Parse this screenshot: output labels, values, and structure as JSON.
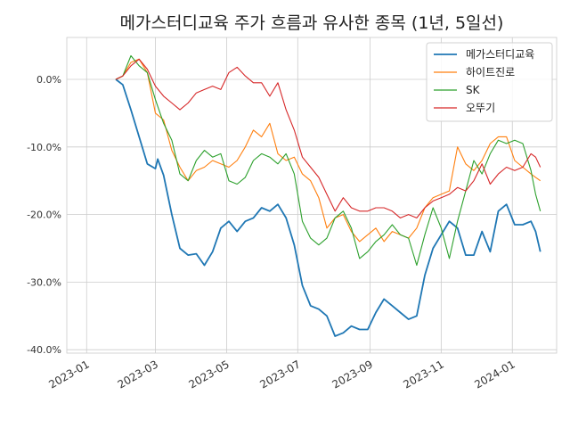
{
  "chart_data": {
    "type": "line",
    "title": "메가스터디교육 주가 흐름과 유사한 종목 (1년, 5일선)",
    "xlabel": "",
    "ylabel": "",
    "xlim": [
      "2022-12-15",
      "2024-02-08"
    ],
    "ylim": [
      -40.5,
      6.2
    ],
    "x_ticks": [
      "2023-01",
      "2023-03",
      "2023-05",
      "2023-07",
      "2023-09",
      "2023-11",
      "2024-01"
    ],
    "y_ticks": [
      "0.0%",
      "-10.0%",
      "-20.0%",
      "-30.0%",
      "-40.0%"
    ],
    "y_tick_values": [
      0,
      -10,
      -20,
      -30,
      -40
    ],
    "grid": true,
    "legend_position": "top-right",
    "series": [
      {
        "name": "메가스터디교육",
        "color": "#1f77b4",
        "points": [
          [
            "2023-01-26",
            0.0
          ],
          [
            "2023-02-01",
            -0.8
          ],
          [
            "2023-02-08",
            -4.5
          ],
          [
            "2023-02-15",
            -8.5
          ],
          [
            "2023-02-22",
            -12.5
          ],
          [
            "2023-03-01",
            -13.2
          ],
          [
            "2023-03-03",
            -11.8
          ],
          [
            "2023-03-08",
            -14.2
          ],
          [
            "2023-03-15",
            -20.0
          ],
          [
            "2023-03-22",
            -25.0
          ],
          [
            "2023-03-29",
            -26.0
          ],
          [
            "2023-04-05",
            -25.8
          ],
          [
            "2023-04-12",
            -27.5
          ],
          [
            "2023-04-19",
            -25.5
          ],
          [
            "2023-04-26",
            -22.0
          ],
          [
            "2023-05-03",
            -21.0
          ],
          [
            "2023-05-10",
            -22.5
          ],
          [
            "2023-05-17",
            -21.0
          ],
          [
            "2023-05-24",
            -20.5
          ],
          [
            "2023-05-31",
            -19.0
          ],
          [
            "2023-06-07",
            -19.5
          ],
          [
            "2023-06-14",
            -18.5
          ],
          [
            "2023-06-21",
            -20.5
          ],
          [
            "2023-06-28",
            -24.5
          ],
          [
            "2023-07-05",
            -30.5
          ],
          [
            "2023-07-12",
            -33.5
          ],
          [
            "2023-07-19",
            -34.0
          ],
          [
            "2023-07-26",
            -35.0
          ],
          [
            "2023-08-02",
            -38.0
          ],
          [
            "2023-08-09",
            -37.5
          ],
          [
            "2023-08-16",
            -36.5
          ],
          [
            "2023-08-23",
            -37.0
          ],
          [
            "2023-08-30",
            -37.0
          ],
          [
            "2023-09-06",
            -34.5
          ],
          [
            "2023-09-13",
            -32.5
          ],
          [
            "2023-09-20",
            -33.5
          ],
          [
            "2023-09-27",
            -34.5
          ],
          [
            "2023-10-04",
            -35.5
          ],
          [
            "2023-10-11",
            -35.0
          ],
          [
            "2023-10-18",
            -29.0
          ],
          [
            "2023-10-25",
            -25.0
          ],
          [
            "2023-11-01",
            -23.0
          ],
          [
            "2023-11-08",
            -21.0
          ],
          [
            "2023-11-15",
            -22.0
          ],
          [
            "2023-11-22",
            -26.0
          ],
          [
            "2023-11-29",
            -26.0
          ],
          [
            "2023-12-06",
            -22.5
          ],
          [
            "2023-12-13",
            -25.5
          ],
          [
            "2023-12-20",
            -19.5
          ],
          [
            "2023-12-27",
            -18.5
          ],
          [
            "2024-01-03",
            -21.5
          ],
          [
            "2024-01-10",
            -21.5
          ],
          [
            "2024-01-17",
            -21.0
          ],
          [
            "2024-01-21",
            -22.5
          ],
          [
            "2024-01-25",
            -25.5
          ]
        ]
      },
      {
        "name": "하이트진로",
        "color": "#ff7f0e",
        "points": [
          [
            "2023-01-26",
            0.0
          ],
          [
            "2023-02-01",
            0.5
          ],
          [
            "2023-02-08",
            2.5
          ],
          [
            "2023-02-15",
            3.0
          ],
          [
            "2023-02-22",
            1.0
          ],
          [
            "2023-03-01",
            -5.0
          ],
          [
            "2023-03-08",
            -6.0
          ],
          [
            "2023-03-15",
            -10.5
          ],
          [
            "2023-03-22",
            -13.0
          ],
          [
            "2023-03-29",
            -15.0
          ],
          [
            "2023-04-05",
            -13.5
          ],
          [
            "2023-04-12",
            -13.0
          ],
          [
            "2023-04-19",
            -12.0
          ],
          [
            "2023-04-26",
            -12.5
          ],
          [
            "2023-05-03",
            -13.0
          ],
          [
            "2023-05-10",
            -12.0
          ],
          [
            "2023-05-17",
            -10.0
          ],
          [
            "2023-05-24",
            -7.5
          ],
          [
            "2023-05-31",
            -8.5
          ],
          [
            "2023-06-07",
            -6.5
          ],
          [
            "2023-06-14",
            -11.0
          ],
          [
            "2023-06-21",
            -12.0
          ],
          [
            "2023-06-28",
            -11.5
          ],
          [
            "2023-07-05",
            -14.0
          ],
          [
            "2023-07-12",
            -15.0
          ],
          [
            "2023-07-19",
            -17.5
          ],
          [
            "2023-07-26",
            -22.0
          ],
          [
            "2023-08-02",
            -20.5
          ],
          [
            "2023-08-09",
            -20.0
          ],
          [
            "2023-08-16",
            -22.5
          ],
          [
            "2023-08-23",
            -24.0
          ],
          [
            "2023-08-30",
            -23.0
          ],
          [
            "2023-09-06",
            -22.0
          ],
          [
            "2023-09-13",
            -24.0
          ],
          [
            "2023-09-20",
            -22.5
          ],
          [
            "2023-09-27",
            -23.0
          ],
          [
            "2023-10-04",
            -23.5
          ],
          [
            "2023-10-11",
            -22.0
          ],
          [
            "2023-10-18",
            -19.0
          ],
          [
            "2023-10-25",
            -17.5
          ],
          [
            "2023-11-01",
            -17.0
          ],
          [
            "2023-11-08",
            -16.5
          ],
          [
            "2023-11-15",
            -10.0
          ],
          [
            "2023-11-22",
            -12.5
          ],
          [
            "2023-11-29",
            -13.5
          ],
          [
            "2023-12-06",
            -12.0
          ],
          [
            "2023-12-13",
            -9.5
          ],
          [
            "2023-12-20",
            -8.5
          ],
          [
            "2023-12-27",
            -8.5
          ],
          [
            "2024-01-03",
            -12.0
          ],
          [
            "2024-01-10",
            -13.0
          ],
          [
            "2024-01-17",
            -14.0
          ],
          [
            "2024-01-21",
            -14.5
          ],
          [
            "2024-01-25",
            -15.0
          ]
        ]
      },
      {
        "name": "SK",
        "color": "#2ca02c",
        "points": [
          [
            "2023-01-26",
            0.0
          ],
          [
            "2023-02-01",
            0.5
          ],
          [
            "2023-02-08",
            3.5
          ],
          [
            "2023-02-15",
            2.0
          ],
          [
            "2023-02-22",
            1.0
          ],
          [
            "2023-03-01",
            -3.0
          ],
          [
            "2023-03-08",
            -6.5
          ],
          [
            "2023-03-15",
            -9.0
          ],
          [
            "2023-03-22",
            -14.0
          ],
          [
            "2023-03-29",
            -15.0
          ],
          [
            "2023-04-05",
            -12.0
          ],
          [
            "2023-04-12",
            -10.5
          ],
          [
            "2023-04-19",
            -11.5
          ],
          [
            "2023-04-26",
            -11.0
          ],
          [
            "2023-05-03",
            -15.0
          ],
          [
            "2023-05-10",
            -15.5
          ],
          [
            "2023-05-17",
            -14.5
          ],
          [
            "2023-05-24",
            -12.0
          ],
          [
            "2023-05-31",
            -11.0
          ],
          [
            "2023-06-07",
            -11.5
          ],
          [
            "2023-06-14",
            -12.5
          ],
          [
            "2023-06-21",
            -11.0
          ],
          [
            "2023-06-28",
            -14.0
          ],
          [
            "2023-07-05",
            -21.0
          ],
          [
            "2023-07-12",
            -23.5
          ],
          [
            "2023-07-19",
            -24.5
          ],
          [
            "2023-07-26",
            -23.5
          ],
          [
            "2023-08-02",
            -20.5
          ],
          [
            "2023-08-09",
            -19.5
          ],
          [
            "2023-08-16",
            -22.0
          ],
          [
            "2023-08-23",
            -26.5
          ],
          [
            "2023-08-30",
            -25.5
          ],
          [
            "2023-09-06",
            -24.0
          ],
          [
            "2023-09-13",
            -23.0
          ],
          [
            "2023-09-20",
            -21.5
          ],
          [
            "2023-09-27",
            -23.0
          ],
          [
            "2023-10-04",
            -23.5
          ],
          [
            "2023-10-11",
            -27.5
          ],
          [
            "2023-10-18",
            -23.0
          ],
          [
            "2023-10-25",
            -19.0
          ],
          [
            "2023-11-01",
            -22.0
          ],
          [
            "2023-11-08",
            -26.5
          ],
          [
            "2023-11-15",
            -21.0
          ],
          [
            "2023-11-22",
            -16.5
          ],
          [
            "2023-11-29",
            -12.0
          ],
          [
            "2023-12-06",
            -14.0
          ],
          [
            "2023-12-13",
            -11.0
          ],
          [
            "2023-12-20",
            -9.0
          ],
          [
            "2023-12-27",
            -9.5
          ],
          [
            "2024-01-03",
            -9.0
          ],
          [
            "2024-01-10",
            -9.5
          ],
          [
            "2024-01-17",
            -13.5
          ],
          [
            "2024-01-21",
            -17.0
          ],
          [
            "2024-01-25",
            -19.5
          ]
        ]
      },
      {
        "name": "오뚜기",
        "color": "#d62728",
        "points": [
          [
            "2023-01-26",
            0.0
          ],
          [
            "2023-02-01",
            0.5
          ],
          [
            "2023-02-08",
            2.0
          ],
          [
            "2023-02-15",
            3.0
          ],
          [
            "2023-02-22",
            1.5
          ],
          [
            "2023-03-01",
            -1.0
          ],
          [
            "2023-03-08",
            -2.5
          ],
          [
            "2023-03-15",
            -3.5
          ],
          [
            "2023-03-22",
            -4.5
          ],
          [
            "2023-03-29",
            -3.5
          ],
          [
            "2023-04-05",
            -2.0
          ],
          [
            "2023-04-12",
            -1.5
          ],
          [
            "2023-04-19",
            -1.0
          ],
          [
            "2023-04-26",
            -1.5
          ],
          [
            "2023-05-03",
            1.0
          ],
          [
            "2023-05-10",
            1.8
          ],
          [
            "2023-05-17",
            0.5
          ],
          [
            "2023-05-24",
            -0.5
          ],
          [
            "2023-05-31",
            -0.5
          ],
          [
            "2023-06-07",
            -2.5
          ],
          [
            "2023-06-14",
            -0.5
          ],
          [
            "2023-06-21",
            -4.5
          ],
          [
            "2023-06-28",
            -7.5
          ],
          [
            "2023-07-05",
            -11.5
          ],
          [
            "2023-07-12",
            -13.0
          ],
          [
            "2023-07-19",
            -14.5
          ],
          [
            "2023-07-26",
            -17.0
          ],
          [
            "2023-08-02",
            -19.5
          ],
          [
            "2023-08-09",
            -17.5
          ],
          [
            "2023-08-16",
            -19.0
          ],
          [
            "2023-08-23",
            -19.5
          ],
          [
            "2023-08-30",
            -19.5
          ],
          [
            "2023-09-06",
            -19.0
          ],
          [
            "2023-09-13",
            -19.0
          ],
          [
            "2023-09-20",
            -19.5
          ],
          [
            "2023-09-27",
            -20.5
          ],
          [
            "2023-10-04",
            -20.0
          ],
          [
            "2023-10-11",
            -20.5
          ],
          [
            "2023-10-18",
            -19.0
          ],
          [
            "2023-10-25",
            -18.0
          ],
          [
            "2023-11-01",
            -17.5
          ],
          [
            "2023-11-08",
            -17.0
          ],
          [
            "2023-11-15",
            -16.0
          ],
          [
            "2023-11-22",
            -16.5
          ],
          [
            "2023-11-29",
            -15.0
          ],
          [
            "2023-12-06",
            -12.5
          ],
          [
            "2023-12-13",
            -15.5
          ],
          [
            "2023-12-20",
            -14.0
          ],
          [
            "2023-12-27",
            -13.0
          ],
          [
            "2024-01-03",
            -13.5
          ],
          [
            "2024-01-10",
            -13.0
          ],
          [
            "2024-01-17",
            -11.0
          ],
          [
            "2024-01-21",
            -11.5
          ],
          [
            "2024-01-25",
            -13.0
          ]
        ]
      }
    ]
  }
}
